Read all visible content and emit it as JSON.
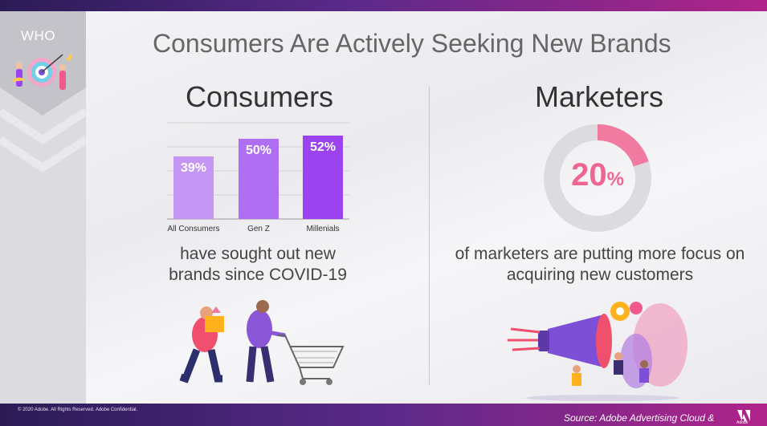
{
  "side": {
    "label": "WHO"
  },
  "title": "Consumers Are Actively Seeking New Brands",
  "consumers": {
    "heading": "Consumers",
    "caption_line1": "have sought out new",
    "caption_line2": "brands since COVID-19"
  },
  "marketers": {
    "heading": "Marketers",
    "value": "20",
    "unit": "%",
    "caption_line1": "of marketers are putting more focus on",
    "caption_line2": "acquiring new customers"
  },
  "chart_data": [
    {
      "type": "bar",
      "categories": [
        "All Consumers",
        "Gen Z",
        "Millenials"
      ],
      "values": [
        39,
        50,
        52
      ],
      "labels": [
        "39%",
        "50%",
        "52%"
      ],
      "colors": [
        "#c696f5",
        "#b06ef2",
        "#9c43f0"
      ],
      "ylim": [
        0,
        60
      ],
      "grid": true
    },
    {
      "type": "pie",
      "categories": [
        "",
        ""
      ],
      "values": [
        20,
        80
      ],
      "colors": [
        "#f07aa0",
        "#dcdbe0"
      ]
    }
  ],
  "colors": {
    "accent": "#ee6591",
    "brand_dark": "#2a1b55",
    "brand_magenta": "#b0248a"
  },
  "footer": {
    "copyright": "© 2020 Adobe.  All Rights Reserved.  Adobe Confidential.",
    "source": "Source: Adobe Advertising Cloud &",
    "logo_text": "Adobe"
  }
}
